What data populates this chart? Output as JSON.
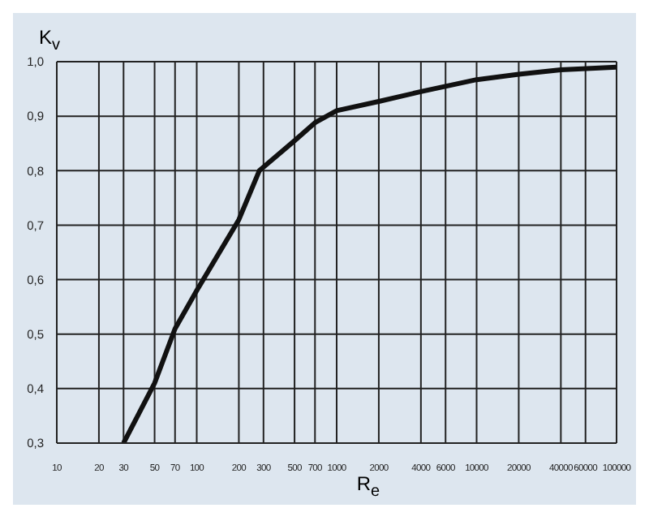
{
  "chart_data": {
    "type": "line",
    "xlabel": "R$_{e}$",
    "ylabel": "K$_{v}$",
    "x": [
      30,
      50,
      70,
      100,
      200,
      280,
      500,
      700,
      1000,
      2000,
      4000,
      10000,
      20000,
      40000,
      100000
    ],
    "series": [
      {
        "color": "#111111",
        "values": [
          0.3,
          0.41,
          0.51,
          0.58,
          0.71,
          0.8,
          0.855,
          0.888,
          0.91,
          0.927,
          0.945,
          0.967,
          0.977,
          0.985,
          0.99
        ]
      }
    ],
    "log": "x",
    "xlim": [
      10,
      100000
    ],
    "xticks": [
      10,
      20,
      30,
      50,
      70,
      100,
      200,
      300,
      500,
      700,
      1000,
      2000,
      4000,
      6000,
      10000,
      20000,
      40000,
      60000,
      100000
    ],
    "ylim": [
      0.3,
      1.0
    ],
    "yticks": [
      {
        "value": 0.3,
        "label": "0,3"
      },
      {
        "value": 0.4,
        "label": "0,4"
      },
      {
        "value": 0.5,
        "label": "0,5"
      },
      {
        "value": 0.6,
        "label": "0,6"
      },
      {
        "value": 0.7,
        "label": "0,7"
      },
      {
        "value": 0.8,
        "label": "0,8"
      },
      {
        "value": 0.9,
        "label": "0,9"
      },
      {
        "value": 1.0,
        "label": "1,0"
      }
    ],
    "grid": true,
    "marker": "none",
    "line_style": "solid",
    "legend": false
  }
}
